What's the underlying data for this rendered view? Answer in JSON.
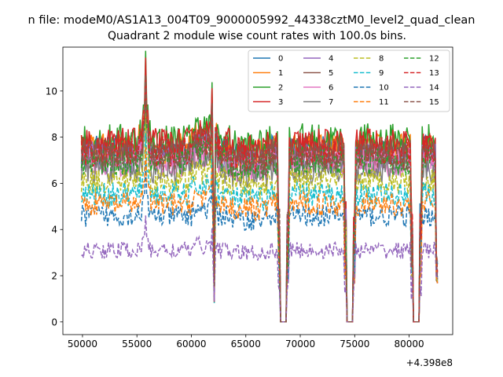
{
  "suptitle": "n file: modeM0/AS1A13_004T09_9000005992_44338cztM0_level2_quad_clean",
  "chart_data": {
    "type": "line",
    "title": "Quadrant 2 module wise count rates with 100.0s bins.",
    "xlabel": "",
    "ylabel": "",
    "x_offset_label": "+4.398e8",
    "xlim": [
      48200,
      84000
    ],
    "ylim": [
      -0.55,
      11.9
    ],
    "xticks": [
      50000,
      55000,
      60000,
      65000,
      70000,
      75000,
      80000
    ],
    "xtick_labels": [
      "50000",
      "55000",
      "60000",
      "65000",
      "70000",
      "75000",
      "80000"
    ],
    "yticks": [
      0,
      2,
      4,
      6,
      8,
      10
    ],
    "ytick_labels": [
      "0",
      "2",
      "4",
      "6",
      "8",
      "10"
    ],
    "grid": false,
    "legend_position": "top-right",
    "legend_columns": 4,
    "x_range": [
      49900,
      82600
    ],
    "bin_seconds": 100,
    "gaps": [
      [
        68200,
        68700
      ],
      [
        74300,
        74800
      ],
      [
        80400,
        80900
      ]
    ],
    "dips": [
      62000
    ],
    "peaks": [
      55800
    ],
    "series": [
      {
        "name": "0",
        "color": "#1f77b4",
        "dash": "solid",
        "level": 7.4
      },
      {
        "name": "1",
        "color": "#ff7f0e",
        "dash": "solid",
        "level": 7.5
      },
      {
        "name": "2",
        "color": "#2ca02c",
        "dash": "solid",
        "level": 7.9
      },
      {
        "name": "3",
        "color": "#d62728",
        "dash": "solid",
        "level": 7.7
      },
      {
        "name": "4",
        "color": "#9467bd",
        "dash": "solid",
        "level": 7.1
      },
      {
        "name": "5",
        "color": "#8c564b",
        "dash": "solid",
        "level": 7.3
      },
      {
        "name": "6",
        "color": "#e377c2",
        "dash": "solid",
        "level": 6.9
      },
      {
        "name": "7",
        "color": "#7f7f7f",
        "dash": "solid",
        "level": 6.6
      },
      {
        "name": "8",
        "color": "#bcbd22",
        "dash": "dashed",
        "level": 6.1
      },
      {
        "name": "9",
        "color": "#17becf",
        "dash": "dashed",
        "level": 5.5
      },
      {
        "name": "10",
        "color": "#1f77b4",
        "dash": "dashed",
        "level": 4.6
      },
      {
        "name": "11",
        "color": "#ff7f0e",
        "dash": "dashed",
        "level": 5.1
      },
      {
        "name": "12",
        "color": "#2ca02c",
        "dash": "dashed",
        "level": 7.0
      },
      {
        "name": "13",
        "color": "#d62728",
        "dash": "dashed",
        "level": 7.4
      },
      {
        "name": "14",
        "color": "#9467bd",
        "dash": "dashed",
        "level": 3.1
      },
      {
        "name": "15",
        "color": "#8c564b",
        "dash": "dashed",
        "level": 7.2
      }
    ]
  }
}
